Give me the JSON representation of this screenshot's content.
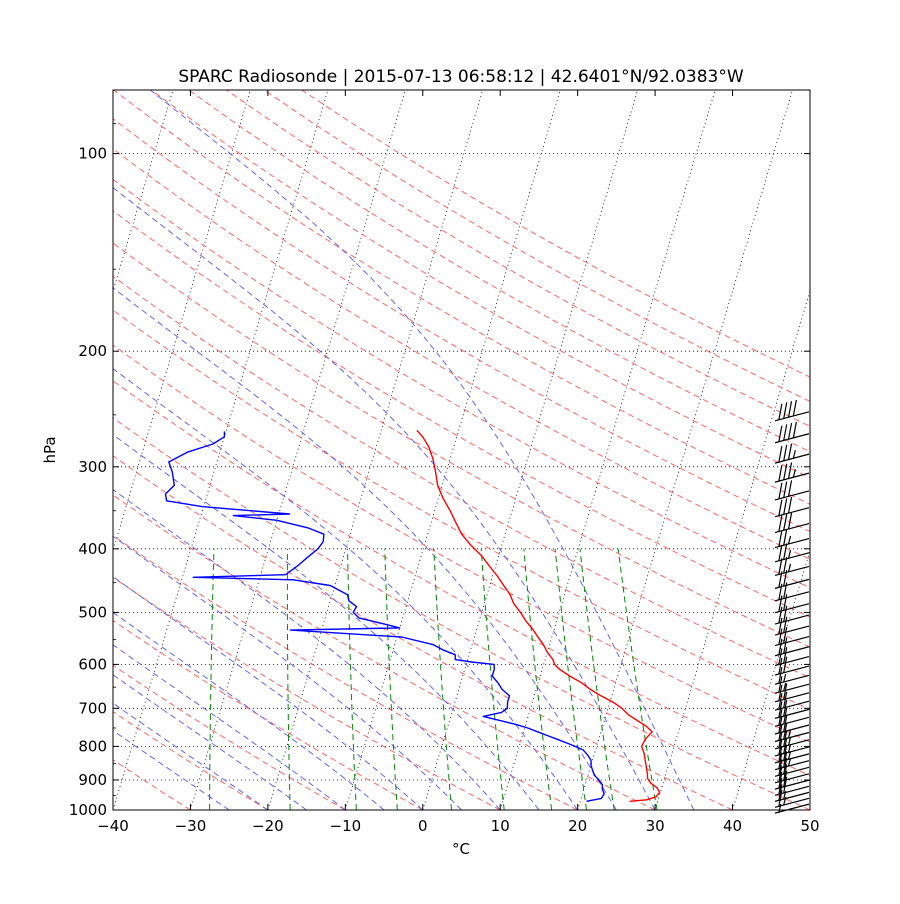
{
  "chart_data": {
    "type": "line",
    "title": "SPARC Radiosonde | 2015-07-13 06:58:12 | 42.6401°N/92.0383°W",
    "xlabel": "°C",
    "ylabel": "hPa",
    "xlim": [
      -40,
      50
    ],
    "ylim": [
      1000,
      80
    ],
    "y_scale": "log",
    "skew_t": true,
    "grid": true,
    "x_ticks": [
      -40,
      -30,
      -20,
      -10,
      0,
      10,
      20,
      30,
      40,
      50
    ],
    "x_tick_labels": [
      "−40",
      "−30",
      "−20",
      "−10",
      "0",
      "10",
      "20",
      "30",
      "40",
      "50"
    ],
    "y_ticks": [
      100,
      200,
      300,
      400,
      500,
      600,
      700,
      800,
      900,
      1000
    ],
    "y_tick_labels": [
      "100",
      "200",
      "300",
      "400",
      "500",
      "600",
      "700",
      "800",
      "900",
      "1000"
    ],
    "series": [
      {
        "color": "#ff0000",
        "points": [
          [
            970,
            26.4
          ],
          [
            965,
            28.5
          ],
          [
            955,
            29.6
          ],
          [
            940,
            29.9
          ],
          [
            925,
            29.4
          ],
          [
            910,
            28.4
          ],
          [
            895,
            27.8
          ],
          [
            880,
            27.6
          ],
          [
            860,
            27.2
          ],
          [
            840,
            26.8
          ],
          [
            820,
            26.4
          ],
          [
            800,
            25.8
          ],
          [
            780,
            26.0
          ],
          [
            760,
            26.6
          ],
          [
            745,
            25.6
          ],
          [
            730,
            24.2
          ],
          [
            715,
            22.8
          ],
          [
            700,
            21.8
          ],
          [
            685,
            20.4
          ],
          [
            670,
            18.6
          ],
          [
            655,
            17.0
          ],
          [
            640,
            15.6
          ],
          [
            625,
            13.8
          ],
          [
            610,
            12.2
          ],
          [
            600,
            11.4
          ],
          [
            590,
            11.0
          ],
          [
            575,
            10.0
          ],
          [
            560,
            9.2
          ],
          [
            545,
            8.2
          ],
          [
            530,
            7.2
          ],
          [
            515,
            6.0
          ],
          [
            500,
            5.0
          ],
          [
            485,
            3.8
          ],
          [
            470,
            3.0
          ],
          [
            455,
            1.8
          ],
          [
            440,
            0.6
          ],
          [
            425,
            -0.8
          ],
          [
            410,
            -2.2
          ],
          [
            395,
            -4.0
          ],
          [
            380,
            -5.6
          ],
          [
            365,
            -6.8
          ],
          [
            350,
            -8.0
          ],
          [
            335,
            -9.4
          ],
          [
            320,
            -10.6
          ],
          [
            305,
            -11.4
          ],
          [
            292,
            -12.2
          ],
          [
            280,
            -13.2
          ],
          [
            270,
            -14.4
          ],
          [
            264,
            -15.4
          ]
        ]
      },
      {
        "color": "#0000ff",
        "points": [
          [
            970,
            20.8
          ],
          [
            960,
            22.6
          ],
          [
            945,
            22.8
          ],
          [
            930,
            22.4
          ],
          [
            915,
            22.2
          ],
          [
            900,
            21.6
          ],
          [
            885,
            20.8
          ],
          [
            870,
            20.4
          ],
          [
            855,
            20.0
          ],
          [
            840,
            19.8
          ],
          [
            825,
            19.2
          ],
          [
            810,
            18.4
          ],
          [
            795,
            16.6
          ],
          [
            780,
            14.6
          ],
          [
            770,
            13.2
          ],
          [
            760,
            11.8
          ],
          [
            750,
            10.4
          ],
          [
            740,
            8.6
          ],
          [
            730,
            6.4
          ],
          [
            720,
            4.2
          ],
          [
            710,
            6.4
          ],
          [
            700,
            7.0
          ],
          [
            685,
            6.8
          ],
          [
            670,
            6.8
          ],
          [
            655,
            5.6
          ],
          [
            640,
            4.8
          ],
          [
            625,
            3.8
          ],
          [
            610,
            3.8
          ],
          [
            600,
            3.6
          ],
          [
            595,
            0.6
          ],
          [
            590,
            -1.6
          ],
          [
            580,
            -1.8
          ],
          [
            570,
            -3.6
          ],
          [
            560,
            -5.0
          ],
          [
            545,
            -9.4
          ],
          [
            532,
            -24.0
          ],
          [
            528,
            -10.0
          ],
          [
            520,
            -12.4
          ],
          [
            510,
            -15.6
          ],
          [
            500,
            -16.6
          ],
          [
            490,
            -16.4
          ],
          [
            480,
            -17.6
          ],
          [
            470,
            -18.0
          ],
          [
            455,
            -20.6
          ],
          [
            446,
            -25.6
          ],
          [
            442,
            -38.6
          ],
          [
            438,
            -26.8
          ],
          [
            425,
            -25.6
          ],
          [
            412,
            -24.6
          ],
          [
            400,
            -23.6
          ],
          [
            390,
            -23.2
          ],
          [
            380,
            -23.4
          ],
          [
            372,
            -25.6
          ],
          [
            362,
            -30.0
          ],
          [
            356,
            -35.8
          ],
          [
            354,
            -28.6
          ],
          [
            345,
            -40.2
          ],
          [
            338,
            -45.0
          ],
          [
            330,
            -45.4
          ],
          [
            320,
            -44.6
          ],
          [
            305,
            -45.4
          ],
          [
            295,
            -46.2
          ],
          [
            285,
            -44.2
          ],
          [
            277,
            -41.2
          ],
          [
            270,
            -40.0
          ],
          [
            265,
            -40.2
          ]
        ]
      }
    ],
    "wind_barbs": {
      "position": "right",
      "pressures": [
        990,
        970,
        950,
        930,
        910,
        890,
        870,
        850,
        830,
        810,
        790,
        770,
        750,
        730,
        710,
        690,
        670,
        650,
        630,
        610,
        590,
        570,
        550,
        530,
        510,
        490,
        470,
        450,
        430,
        410,
        390,
        370,
        350,
        330,
        310,
        290,
        270,
        250
      ],
      "speeds_kt": [
        5,
        15,
        15,
        20,
        20,
        20,
        20,
        25,
        25,
        25,
        25,
        25,
        20,
        20,
        20,
        20,
        20,
        15,
        15,
        20,
        20,
        20,
        20,
        20,
        20,
        20,
        20,
        20,
        25,
        25,
        25,
        30,
        30,
        30,
        35,
        35,
        40,
        40
      ],
      "color": "#000000"
    },
    "reference_lines": {
      "isotherm_color": "#000000",
      "dry_adiabat_color": "#ff6666",
      "moist_adiabat_color": "#6666ee",
      "mixing_ratio_color": "#008800"
    }
  }
}
